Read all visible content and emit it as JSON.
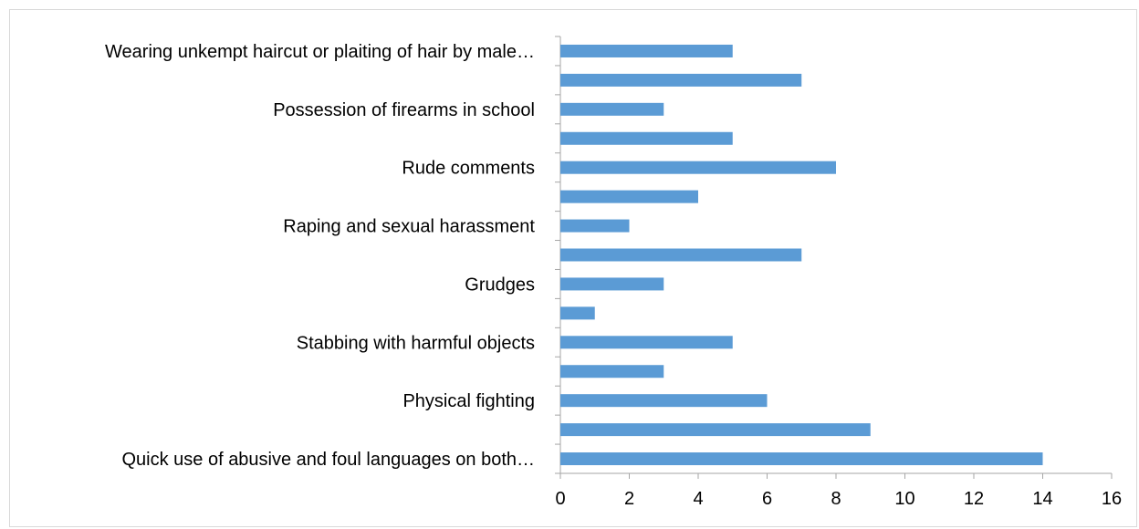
{
  "chart_data": {
    "type": "bar",
    "orientation": "horizontal",
    "categories": [
      "Wearing unkempt haircut or plaiting of hair by male…",
      "",
      "Possession of firearms in school",
      "",
      "Rude comments",
      "",
      "Raping and sexual harassment",
      "",
      "Grudges",
      "",
      "Stabbing with harmful objects",
      "",
      "Physical fighting",
      "",
      "Quick use of abusive and foul languages on both…"
    ],
    "values": [
      5,
      7,
      3,
      5,
      8,
      4,
      2,
      7,
      3,
      1,
      5,
      3,
      6,
      9,
      14
    ],
    "xlim": [
      0,
      16
    ],
    "xticks": [
      "0",
      "2",
      "4",
      "6",
      "8",
      "10",
      "12",
      "14",
      "16"
    ],
    "bar_color": "#5b9bd5",
    "grid": false,
    "legend": "none",
    "title": "",
    "xlabel": "",
    "ylabel": ""
  }
}
